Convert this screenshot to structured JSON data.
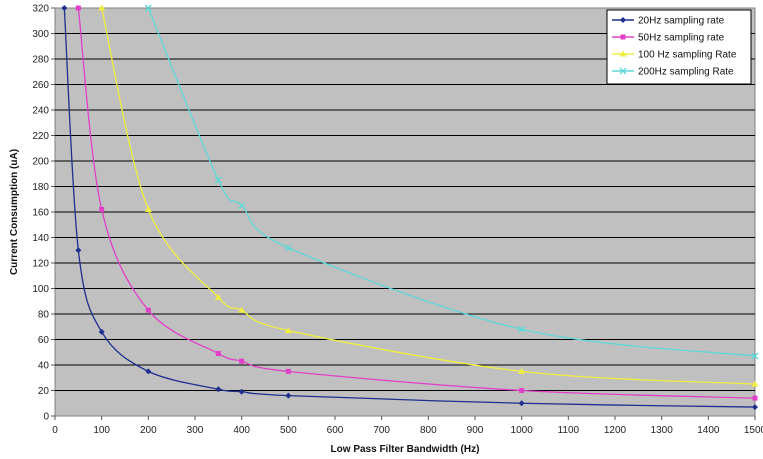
{
  "chart_data": {
    "type": "line",
    "title": "",
    "xlabel": "Low Pass Filter Bandwidth (Hz)",
    "ylabel": "Current Consumption (uA)",
    "xlim": [
      0,
      1500
    ],
    "ylim": [
      0,
      320
    ],
    "xticks": [
      0,
      100,
      200,
      300,
      400,
      500,
      600,
      700,
      800,
      900,
      1000,
      1100,
      1200,
      1300,
      1400,
      1500
    ],
    "yticks": [
      0,
      20,
      40,
      60,
      80,
      100,
      120,
      140,
      160,
      180,
      200,
      220,
      240,
      260,
      280,
      300,
      320
    ],
    "grid": true,
    "plot_background": "#c0c0c0",
    "legend_position": "top-right",
    "series": [
      {
        "name": "20Hz sampling rate",
        "color": "#1f2f8f",
        "marker": "diamond",
        "points": [
          [
            20,
            320
          ],
          [
            50,
            130
          ],
          [
            100,
            66
          ],
          [
            200,
            35
          ],
          [
            350,
            21
          ],
          [
            400,
            19
          ],
          [
            500,
            16
          ],
          [
            1000,
            10
          ],
          [
            1500,
            7
          ]
        ]
      },
      {
        "name": "50Hz sampling rate",
        "color": "#e040c8",
        "marker": "square",
        "points": [
          [
            50,
            320
          ],
          [
            100,
            162
          ],
          [
            200,
            83
          ],
          [
            350,
            49
          ],
          [
            400,
            43
          ],
          [
            500,
            35
          ],
          [
            1000,
            20
          ],
          [
            1500,
            14
          ]
        ]
      },
      {
        "name": "100 Hz sampling Rate",
        "color": "#f0ee40",
        "marker": "triangle",
        "points": [
          [
            100,
            320
          ],
          [
            200,
            162
          ],
          [
            350,
            93
          ],
          [
            400,
            83
          ],
          [
            500,
            67
          ],
          [
            1000,
            35
          ],
          [
            1500,
            25
          ]
        ]
      },
      {
        "name": "200Hz sampling Rate",
        "color": "#60d8d8",
        "marker": "x",
        "points": [
          [
            200,
            320
          ],
          [
            350,
            185
          ],
          [
            400,
            165
          ],
          [
            500,
            132
          ],
          [
            1000,
            68
          ],
          [
            1500,
            47
          ]
        ]
      }
    ]
  }
}
